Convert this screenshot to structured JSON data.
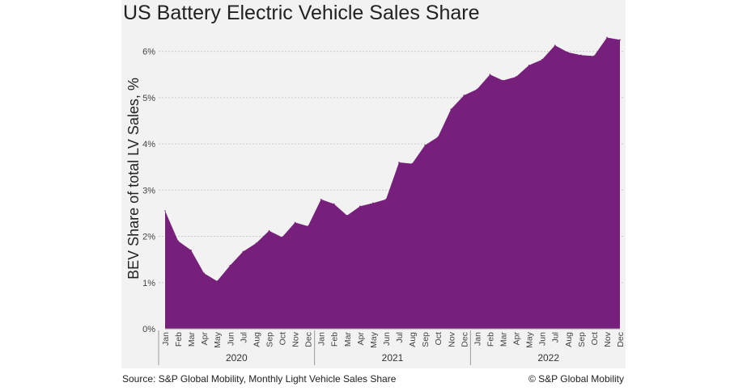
{
  "chart_data": {
    "type": "area",
    "title": "US Battery Electric Vehicle Sales Share",
    "xlabel": "",
    "ylabel": "BEV Share of total LV Sales, %",
    "ylim": [
      0,
      6.5
    ],
    "yticks": [
      0,
      1,
      2,
      3,
      4,
      5,
      6
    ],
    "ytick_labels": [
      "0%",
      "1%",
      "2%",
      "3%",
      "4%",
      "5%",
      "6%"
    ],
    "grid": true,
    "legend": "none",
    "years": [
      {
        "label": "2020",
        "months": [
          "Jan",
          "Feb",
          "Mar",
          "Apr",
          "May",
          "Jun",
          "Jul",
          "Aug",
          "Sep",
          "Oct",
          "Nov",
          "Dec"
        ]
      },
      {
        "label": "2021",
        "months": [
          "Jan",
          "Feb",
          "Mar",
          "Apr",
          "May",
          "Jun",
          "Jul",
          "Aug",
          "Sep",
          "Oct",
          "Nov",
          "Dec"
        ]
      },
      {
        "label": "2022",
        "months": [
          "Jan",
          "Feb",
          "Mar",
          "Apr",
          "May",
          "Jun",
          "Jul",
          "Aug",
          "Sep",
          "Oct",
          "Nov",
          "Dec"
        ]
      }
    ],
    "series": [
      {
        "values": [
          2.55,
          1.9,
          1.7,
          1.2,
          1.03,
          1.37,
          1.67,
          1.85,
          2.12,
          1.98,
          2.3,
          2.22,
          2.8,
          2.7,
          2.45,
          2.65,
          2.72,
          2.8,
          3.6,
          3.57,
          3.97,
          4.15,
          4.75,
          5.05,
          5.18,
          5.5,
          5.37,
          5.45,
          5.7,
          5.82,
          6.13,
          5.98,
          5.92,
          5.9,
          6.3,
          6.25
        ],
        "color": "#76207b"
      }
    ]
  },
  "footer": {
    "source": "Source: S&P Global Mobility, Monthly Light Vehicle Sales Share",
    "copyright": "© S&P Global Mobility"
  }
}
